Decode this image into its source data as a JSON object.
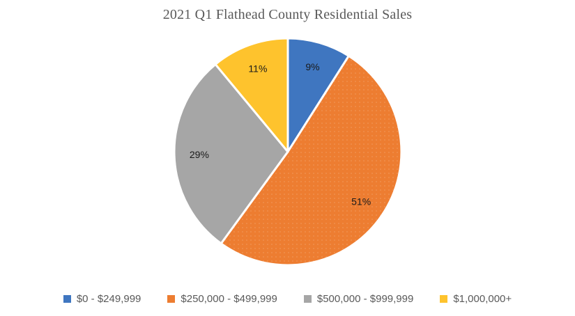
{
  "page": {
    "background_color": "#FFFFFF"
  },
  "chart_data": {
    "type": "pie",
    "title": "2021 Q1 Flathead County Residential Sales",
    "categories": [
      "$0 - $249,999",
      "$250,000 - $499,999",
      "$500,000 - $999,999",
      "$1,000,000+"
    ],
    "values": [
      9,
      51,
      29,
      11
    ],
    "slice_labels": [
      "9%",
      "51%",
      "29%",
      "11%"
    ],
    "colors": [
      "#3F76C0",
      "#ED7D31",
      "#A6A6A6",
      "#FEC32D"
    ],
    "start_angle_deg": 0,
    "direction": "clockwise",
    "legend_position": "bottom",
    "title_color": "#595959",
    "legend_text_color": "#595959",
    "slice_label_color": "#1A1A1A",
    "slice_border_color": "#FFFFFF",
    "dotted_slice_index": 1
  }
}
